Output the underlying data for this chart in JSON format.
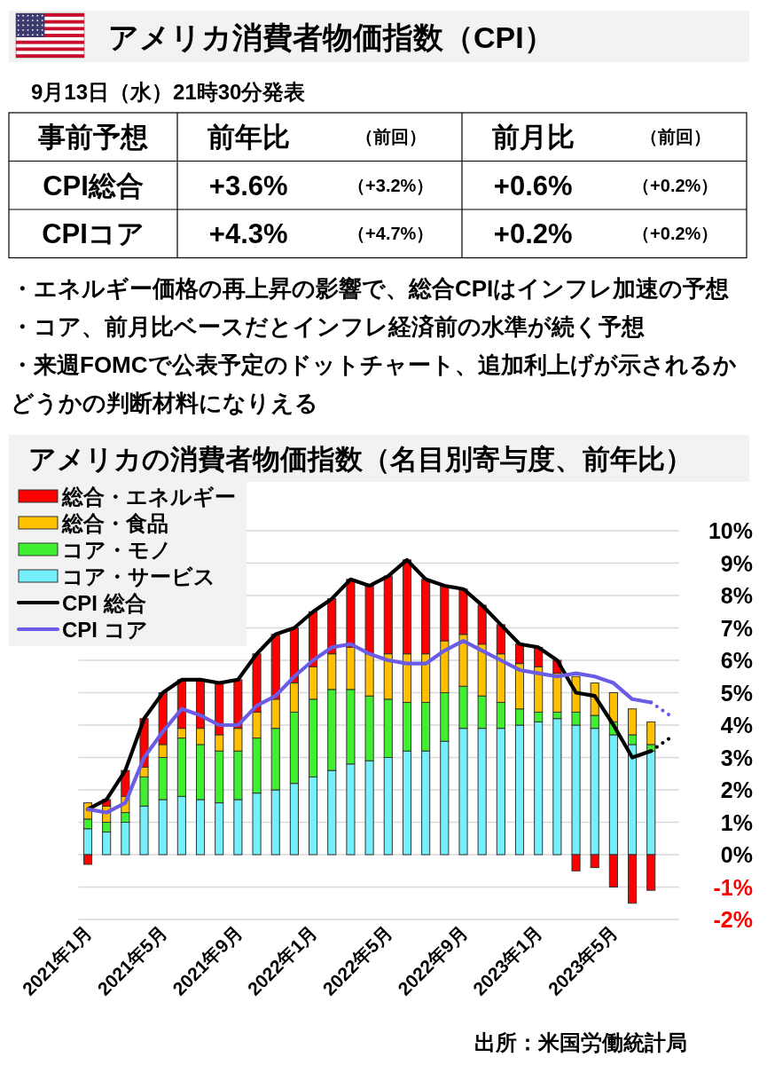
{
  "chart_data": [
    {
      "type": "other",
      "title": "アメリカ消費者物価指数（CPI）",
      "subtitle": "9月13日（水）21時30分発表",
      "ylabel": "事前予想",
      "categories": [
        "前年比",
        "（前回）",
        "前月比",
        "（前回）"
      ],
      "y_categories": [
        "CPI総合",
        "CPIコア"
      ],
      "cell_labels": [
        [
          "+3.6%",
          "（+3.2%）",
          "+0.6%",
          "（+0.2%）"
        ],
        [
          "+4.3%",
          "（+4.7%）",
          "+0.2%",
          "（+0.2%）"
        ]
      ],
      "annotations": [
        "・エネルギー価格の再上昇の影響で、総合CPIはインフレ加速の予想",
        "・コア、前月比ベースだとインフレ経済前の水準が続く予想",
        "・来週FOMCで公表予定のドットチャート、追加利上げが示されるかどうかの判断材料になりえる"
      ]
    },
    {
      "type": "bar",
      "stacked": true,
      "title": "アメリカの消費者物価指数（名目別寄与度、前年比）",
      "categories": [
        "2021年1月",
        null,
        null,
        null,
        "2021年5月",
        null,
        null,
        null,
        "2021年9月",
        null,
        null,
        null,
        "2022年1月",
        null,
        null,
        null,
        "2022年5月",
        null,
        null,
        null,
        "2022年9月",
        null,
        null,
        null,
        "2023年1月",
        null,
        null,
        null,
        "2023年5月",
        null,
        null,
        null
      ],
      "series": [
        {
          "name": "コア・サービス",
          "type": "bar",
          "color": "#75f0fa",
          "values": [
            0.8,
            0.7,
            1.0,
            1.5,
            1.7,
            1.8,
            1.7,
            1.6,
            1.7,
            1.9,
            2.0,
            2.2,
            2.4,
            2.6,
            2.8,
            2.9,
            3.0,
            3.2,
            3.2,
            3.5,
            3.9,
            3.9,
            3.9,
            4.0,
            4.1,
            4.2,
            4.0,
            3.9,
            3.7,
            3.4,
            3.2,
            null
          ]
        },
        {
          "name": "コア・モノ",
          "type": "bar",
          "color": "#40f030",
          "values": [
            0.3,
            0.3,
            0.3,
            0.9,
            1.3,
            1.8,
            1.7,
            1.6,
            1.5,
            1.7,
            1.9,
            2.2,
            2.4,
            2.5,
            2.3,
            2.0,
            1.8,
            1.5,
            1.5,
            1.5,
            1.3,
            1.0,
            0.8,
            0.5,
            0.3,
            0.2,
            0.4,
            0.4,
            0.4,
            0.3,
            0.2,
            null
          ]
        },
        {
          "name": "総合・食品",
          "type": "bar",
          "color": "#ffc000",
          "values": [
            0.5,
            0.5,
            0.5,
            0.3,
            0.4,
            0.3,
            0.5,
            0.5,
            0.7,
            0.8,
            0.9,
            0.9,
            1.0,
            1.1,
            1.3,
            1.3,
            1.4,
            1.5,
            1.5,
            1.6,
            1.6,
            1.6,
            1.5,
            1.4,
            1.4,
            1.2,
            1.1,
            1.0,
            0.9,
            0.8,
            0.7,
            null
          ]
        },
        {
          "name": "総合・エネルギー",
          "type": "bar",
          "color": "#ff0000",
          "values": [
            -0.3,
            0.2,
            0.8,
            1.5,
            1.6,
            1.5,
            1.5,
            1.6,
            1.5,
            1.8,
            2.0,
            1.7,
            1.7,
            1.7,
            2.1,
            2.1,
            2.4,
            2.9,
            2.3,
            1.7,
            1.4,
            1.2,
            0.9,
            0.6,
            0.6,
            0.4,
            -0.5,
            -0.4,
            -1.0,
            -1.5,
            -1.1,
            null
          ]
        },
        {
          "name": "CPI 総合",
          "type": "line",
          "color": "#000000",
          "line_style": "solid",
          "values": [
            1.4,
            1.7,
            2.6,
            4.2,
            5.0,
            5.4,
            5.4,
            5.3,
            5.4,
            6.2,
            6.8,
            7.0,
            7.5,
            7.9,
            8.5,
            8.3,
            8.6,
            9.1,
            8.5,
            8.3,
            8.2,
            7.7,
            7.1,
            6.5,
            6.4,
            6.0,
            5.0,
            4.9,
            4.0,
            3.0,
            3.2,
            null
          ]
        },
        {
          "name": "CPI コア",
          "type": "line",
          "color": "#6b5ce7",
          "line_style": "solid",
          "values": [
            1.4,
            1.3,
            1.6,
            3.0,
            3.8,
            4.5,
            4.3,
            4.0,
            4.0,
            4.6,
            4.9,
            5.5,
            6.0,
            6.4,
            6.5,
            6.2,
            6.0,
            5.9,
            5.9,
            6.3,
            6.6,
            6.3,
            6.0,
            5.7,
            5.6,
            5.5,
            5.6,
            5.5,
            5.3,
            4.8,
            4.7,
            null
          ]
        },
        {
          "type": "line",
          "color": "#000000",
          "line_style": "dotted",
          "values": [
            null,
            null,
            null,
            null,
            null,
            null,
            null,
            null,
            null,
            null,
            null,
            null,
            null,
            null,
            null,
            null,
            null,
            null,
            null,
            null,
            null,
            null,
            null,
            null,
            null,
            null,
            null,
            null,
            null,
            null,
            3.2,
            3.6
          ]
        },
        {
          "type": "line",
          "color": "#6b5ce7",
          "line_style": "dotted",
          "values": [
            null,
            null,
            null,
            null,
            null,
            null,
            null,
            null,
            null,
            null,
            null,
            null,
            null,
            null,
            null,
            null,
            null,
            null,
            null,
            null,
            null,
            null,
            null,
            null,
            null,
            null,
            null,
            null,
            null,
            null,
            4.7,
            4.3
          ]
        }
      ],
      "ylim": [
        -2,
        10
      ],
      "yticks": [
        {
          "value": -2,
          "label": "-2%"
        },
        {
          "value": -1,
          "label": "-1%"
        },
        {
          "value": 0,
          "label": "0%"
        },
        {
          "value": 1,
          "label": "1%"
        },
        {
          "value": 2,
          "label": "2%"
        },
        {
          "value": 3,
          "label": "3%"
        },
        {
          "value": 4,
          "label": "4%"
        },
        {
          "value": 5,
          "label": "5%"
        },
        {
          "value": 6,
          "label": "6%"
        },
        {
          "value": 7,
          "label": "7%"
        },
        {
          "value": 8,
          "label": "8%"
        },
        {
          "value": 9,
          "label": "9%"
        },
        {
          "value": 10,
          "label": "10%"
        }
      ],
      "grid": "y",
      "legend": "top left",
      "annotations": [
        "出所：米国労働統計局"
      ]
    }
  ]
}
